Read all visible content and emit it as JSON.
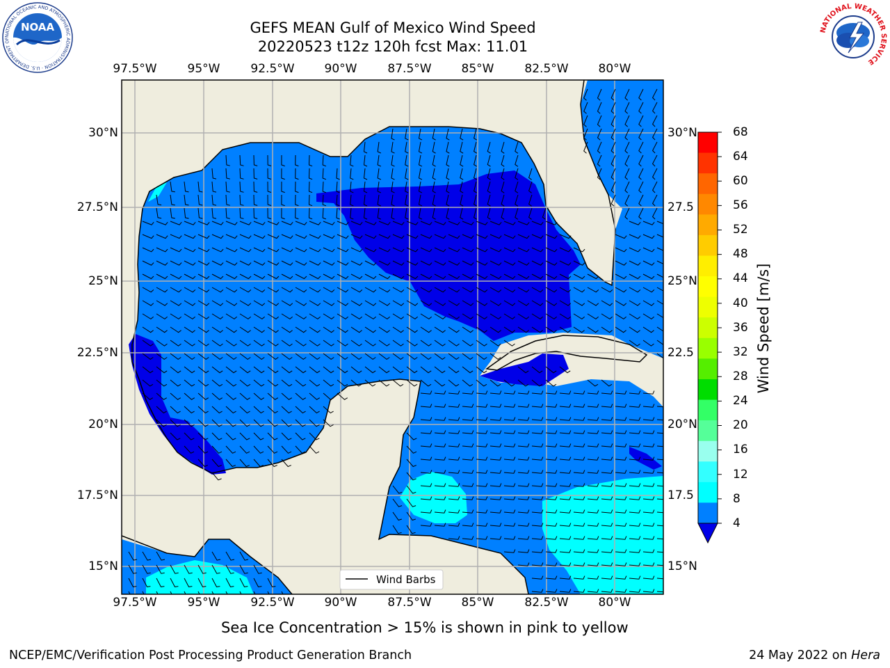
{
  "title": {
    "line1": "GEFS MEAN Gulf of Mexico Wind Speed",
    "line2": "20220523 t12z 120h fcst   Max: 11.01"
  },
  "map": {
    "lon_ticks": [
      "97.5°W",
      "95°W",
      "92.5°W",
      "90°W",
      "87.5°W",
      "85°W",
      "82.5°W",
      "80°W"
    ],
    "lat_ticks_left": [
      "30°N",
      "27.5°N",
      "25°N",
      "22.5°N",
      "20°N",
      "17.5°N",
      "15°N"
    ],
    "lat_ticks_right": [
      "30°N",
      "27.5",
      "25°N",
      "22.5",
      "20°N",
      "17.5",
      "15°N"
    ],
    "legend_label": "Wind Barbs",
    "land_color": "#efedde",
    "coast_color": "#000000",
    "grid_color": "#b0b0b0",
    "wind_colors": {
      "4-8": "#0080ff",
      "below-4": "#0000e8",
      "8-12": "#00ffff"
    }
  },
  "colorbar": {
    "label": "Wind Speed [m/s]",
    "ticks": [
      "68",
      "64",
      "60",
      "56",
      "52",
      "48",
      "44",
      "40",
      "36",
      "32",
      "28",
      "24",
      "20",
      "16",
      "12",
      "8",
      "4"
    ],
    "colors": [
      "#ff0000",
      "#ff3300",
      "#ff6600",
      "#ff8800",
      "#ffaa00",
      "#ffcc00",
      "#ffee00",
      "#ffff00",
      "#eeff00",
      "#ccff00",
      "#99ff00",
      "#55ee00",
      "#00dd00",
      "#33ff66",
      "#55ff99",
      "#99ffee",
      "#33ffff",
      "#00ffff",
      "#0080ff",
      "#0000e8"
    ]
  },
  "subtitle": "Sea Ice Concentration > 15% is shown in pink to yellow",
  "footer": {
    "left": "NCEP/EMC/Verification Post Processing Product Generation Branch",
    "right_date": "24 May 2022 on ",
    "right_host": "Hera"
  },
  "logos": {
    "noaa_text": "NOAA",
    "noaa_ring": "NATIONAL OCEANIC AND ATMOSPHERIC ADMINISTRATION · U.S. DEPARTMENT OF COMMERCE",
    "nws_ring": "NATIONAL WEATHER SERVICE"
  }
}
